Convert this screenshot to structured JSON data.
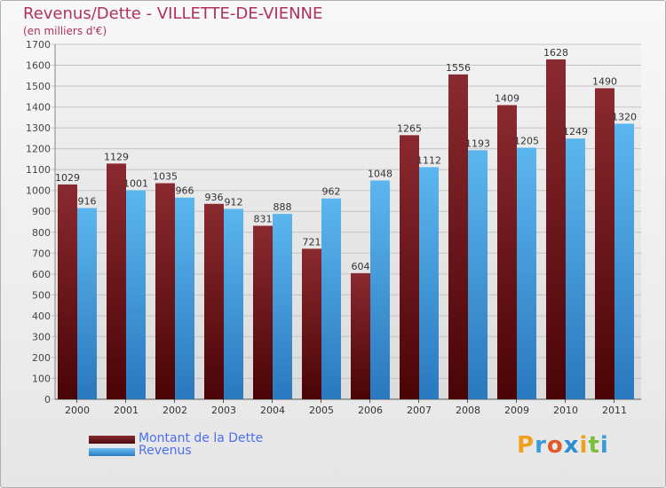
{
  "title": "Revenus/Dette - VILLETTE-DE-VIENNE",
  "subtitle": "(en milliers d'€)",
  "logo": {
    "text": "Proxiti",
    "letters": [
      "P",
      "r",
      "o",
      "x",
      "i",
      "t",
      "i"
    ],
    "colors": [
      "#f0a020",
      "#3a9bd8",
      "#e05a2a",
      "#2a8fd0",
      "#f0a020",
      "#7bbf3a",
      "#3a9bd8"
    ]
  },
  "colors": {
    "debt": "#7a1f24",
    "revenue": "#4aa8e6",
    "title": "#b0305e",
    "legend_text": "#4d6df0"
  },
  "chart_data": {
    "type": "bar",
    "title": "Revenus/Dette - VILLETTE-DE-VIENNE",
    "ylim": [
      0,
      1700
    ],
    "yticks": [
      0,
      100,
      200,
      300,
      400,
      500,
      600,
      700,
      800,
      900,
      1000,
      1100,
      1200,
      1300,
      1400,
      1500,
      1600,
      1700
    ],
    "grid": true,
    "legend_position": "bottom-left",
    "categories": [
      "2000",
      "2001",
      "2002",
      "2003",
      "2004",
      "2005",
      "2006",
      "2007",
      "2008",
      "2009",
      "2010",
      "2011"
    ],
    "series": [
      {
        "name": "Montant de la Dette",
        "values": [
          1029,
          1129,
          1035,
          936,
          831,
          721,
          604,
          1265,
          1556,
          1409,
          1628,
          1490
        ]
      },
      {
        "name": "Revenus",
        "values": [
          916,
          1001,
          966,
          912,
          888,
          962,
          1048,
          1112,
          1193,
          1205,
          1249,
          1320
        ]
      }
    ]
  }
}
